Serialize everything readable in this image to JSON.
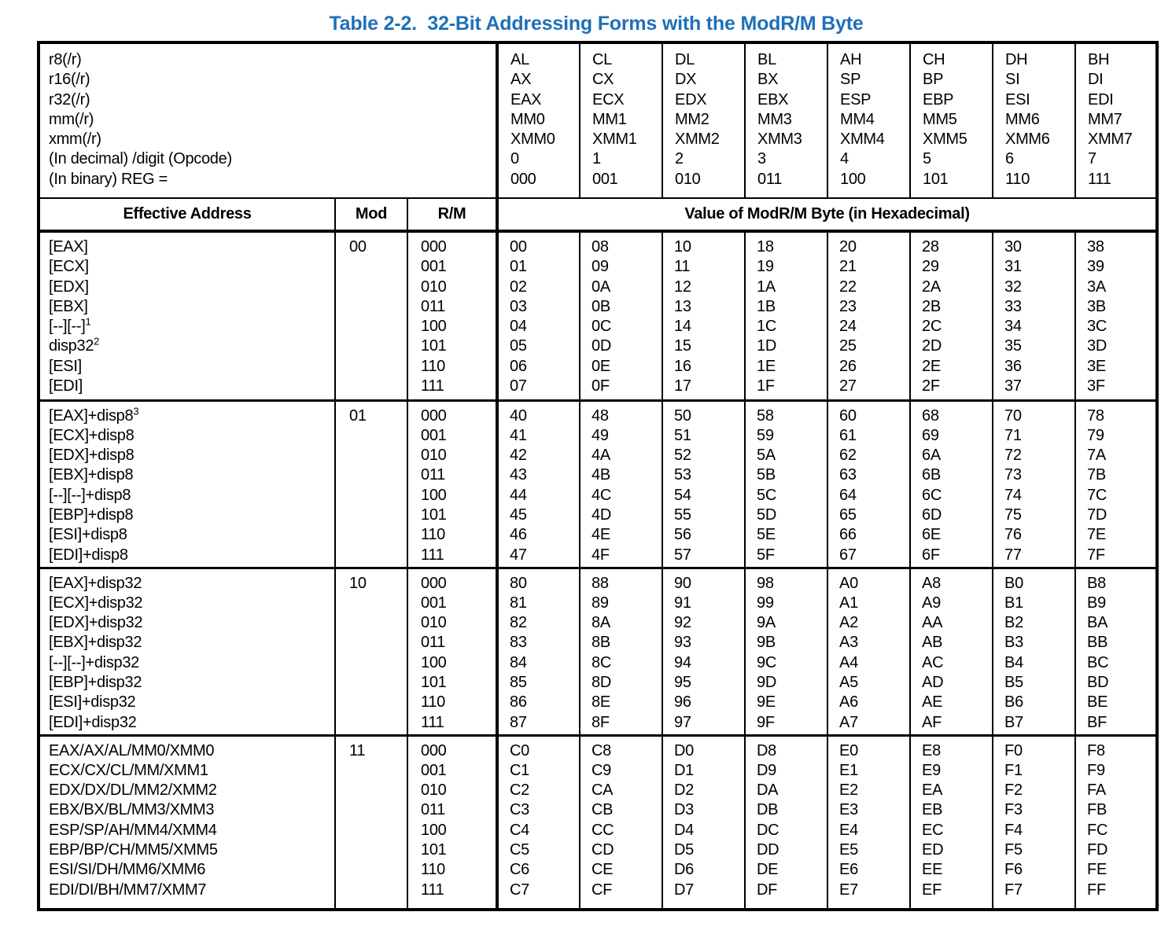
{
  "title": "Table 2-2.  32-Bit Addressing Forms with the ModR/M Byte",
  "colors": {
    "title_blue": "#1e70b8",
    "line_black": "#000000"
  },
  "header": {
    "reg_key_lines": [
      "r8(/r)",
      "r16(/r)",
      "r32(/r)",
      "mm(/r)",
      "xmm(/r)",
      "(In decimal) /digit (Opcode)",
      "(In binary) REG ="
    ],
    "reg_columns": [
      [
        "AL",
        "AX",
        "EAX",
        "MM0",
        "XMM0",
        "0",
        "000"
      ],
      [
        "CL",
        "CX",
        "ECX",
        "MM1",
        "XMM1",
        "1",
        "001"
      ],
      [
        "DL",
        "DX",
        "EDX",
        "MM2",
        "XMM2",
        "2",
        "010"
      ],
      [
        "BL",
        "BX",
        "EBX",
        "MM3",
        "XMM3",
        "3",
        "011"
      ],
      [
        "AH",
        "SP",
        "ESP",
        "MM4",
        "XMM4",
        "4",
        "100"
      ],
      [
        "CH",
        "BP",
        "EBP",
        "MM5",
        "XMM5",
        "5",
        "101"
      ],
      [
        "DH",
        "SI",
        "ESI",
        "MM6",
        "XMM6",
        "6",
        "110"
      ],
      [
        "BH",
        "DI",
        "EDI",
        "MM7",
        "XMM7",
        "7",
        "111"
      ]
    ],
    "effective_address_label": "Effective Address",
    "mod_label": "Mod",
    "rm_label": "R/M",
    "value_label": "Value of ModR/M Byte (in Hexadecimal)"
  },
  "rm_values": [
    "000",
    "001",
    "010",
    "011",
    "100",
    "101",
    "110",
    "111"
  ],
  "sections": [
    {
      "mod": "00",
      "effective_addresses": [
        {
          "t": "[EAX]",
          "s": ""
        },
        {
          "t": "[ECX]",
          "s": ""
        },
        {
          "t": "[EDX]",
          "s": ""
        },
        {
          "t": "[EBX]",
          "s": ""
        },
        {
          "t": "[--][--]",
          "s": "1"
        },
        {
          "t": "disp32",
          "s": "2"
        },
        {
          "t": "[ESI]",
          "s": ""
        },
        {
          "t": "[EDI]",
          "s": ""
        }
      ],
      "hex_columns": [
        [
          "00",
          "01",
          "02",
          "03",
          "04",
          "05",
          "06",
          "07"
        ],
        [
          "08",
          "09",
          "0A",
          "0B",
          "0C",
          "0D",
          "0E",
          "0F"
        ],
        [
          "10",
          "11",
          "12",
          "13",
          "14",
          "15",
          "16",
          "17"
        ],
        [
          "18",
          "19",
          "1A",
          "1B",
          "1C",
          "1D",
          "1E",
          "1F"
        ],
        [
          "20",
          "21",
          "22",
          "23",
          "24",
          "25",
          "26",
          "27"
        ],
        [
          "28",
          "29",
          "2A",
          "2B",
          "2C",
          "2D",
          "2E",
          "2F"
        ],
        [
          "30",
          "31",
          "32",
          "33",
          "34",
          "35",
          "36",
          "37"
        ],
        [
          "38",
          "39",
          "3A",
          "3B",
          "3C",
          "3D",
          "3E",
          "3F"
        ]
      ]
    },
    {
      "mod": "01",
      "effective_addresses": [
        {
          "t": "[EAX]+disp8",
          "s": "3"
        },
        {
          "t": "[ECX]+disp8",
          "s": ""
        },
        {
          "t": "[EDX]+disp8",
          "s": ""
        },
        {
          "t": "[EBX]+disp8",
          "s": ""
        },
        {
          "t": "[--][--]+disp8",
          "s": ""
        },
        {
          "t": "[EBP]+disp8",
          "s": ""
        },
        {
          "t": "[ESI]+disp8",
          "s": ""
        },
        {
          "t": "[EDI]+disp8",
          "s": ""
        }
      ],
      "hex_columns": [
        [
          "40",
          "41",
          "42",
          "43",
          "44",
          "45",
          "46",
          "47"
        ],
        [
          "48",
          "49",
          "4A",
          "4B",
          "4C",
          "4D",
          "4E",
          "4F"
        ],
        [
          "50",
          "51",
          "52",
          "53",
          "54",
          "55",
          "56",
          "57"
        ],
        [
          "58",
          "59",
          "5A",
          "5B",
          "5C",
          "5D",
          "5E",
          "5F"
        ],
        [
          "60",
          "61",
          "62",
          "63",
          "64",
          "65",
          "66",
          "67"
        ],
        [
          "68",
          "69",
          "6A",
          "6B",
          "6C",
          "6D",
          "6E",
          "6F"
        ],
        [
          "70",
          "71",
          "72",
          "73",
          "74",
          "75",
          "76",
          "77"
        ],
        [
          "78",
          "79",
          "7A",
          "7B",
          "7C",
          "7D",
          "7E",
          "7F"
        ]
      ]
    },
    {
      "mod": "10",
      "effective_addresses": [
        {
          "t": "[EAX]+disp32",
          "s": ""
        },
        {
          "t": "[ECX]+disp32",
          "s": ""
        },
        {
          "t": "[EDX]+disp32",
          "s": ""
        },
        {
          "t": "[EBX]+disp32",
          "s": ""
        },
        {
          "t": "[--][--]+disp32",
          "s": ""
        },
        {
          "t": "[EBP]+disp32",
          "s": ""
        },
        {
          "t": "[ESI]+disp32",
          "s": ""
        },
        {
          "t": "[EDI]+disp32",
          "s": ""
        }
      ],
      "hex_columns": [
        [
          "80",
          "81",
          "82",
          "83",
          "84",
          "85",
          "86",
          "87"
        ],
        [
          "88",
          "89",
          "8A",
          "8B",
          "8C",
          "8D",
          "8E",
          "8F"
        ],
        [
          "90",
          "91",
          "92",
          "93",
          "94",
          "95",
          "96",
          "97"
        ],
        [
          "98",
          "99",
          "9A",
          "9B",
          "9C",
          "9D",
          "9E",
          "9F"
        ],
        [
          "A0",
          "A1",
          "A2",
          "A3",
          "A4",
          "A5",
          "A6",
          "A7"
        ],
        [
          "A8",
          "A9",
          "AA",
          "AB",
          "AC",
          "AD",
          "AE",
          "AF"
        ],
        [
          "B0",
          "B1",
          "B2",
          "B3",
          "B4",
          "B5",
          "B6",
          "B7"
        ],
        [
          "B8",
          "B9",
          "BA",
          "BB",
          "BC",
          "BD",
          "BE",
          "BF"
        ]
      ]
    },
    {
      "mod": "11",
      "effective_addresses": [
        {
          "t": "EAX/AX/AL/MM0/XMM0",
          "s": ""
        },
        {
          "t": "ECX/CX/CL/MM/XMM1",
          "s": ""
        },
        {
          "t": "EDX/DX/DL/MM2/XMM2",
          "s": ""
        },
        {
          "t": "EBX/BX/BL/MM3/XMM3",
          "s": ""
        },
        {
          "t": "ESP/SP/AH/MM4/XMM4",
          "s": ""
        },
        {
          "t": "EBP/BP/CH/MM5/XMM5",
          "s": ""
        },
        {
          "t": "ESI/SI/DH/MM6/XMM6",
          "s": ""
        },
        {
          "t": "EDI/DI/BH/MM7/XMM7",
          "s": ""
        }
      ],
      "hex_columns": [
        [
          "C0",
          "C1",
          "C2",
          "C3",
          "C4",
          "C5",
          "C6",
          "C7"
        ],
        [
          "C8",
          "C9",
          "CA",
          "CB",
          "CC",
          "CD",
          "CE",
          "CF"
        ],
        [
          "D0",
          "D1",
          "D2",
          "D3",
          "D4",
          "D5",
          "D6",
          "D7"
        ],
        [
          "D8",
          "D9",
          "DA",
          "DB",
          "DC",
          "DD",
          "DE",
          "DF"
        ],
        [
          "E0",
          "E1",
          "E2",
          "E3",
          "E4",
          "E5",
          "E6",
          "E7"
        ],
        [
          "E8",
          "E9",
          "EA",
          "EB",
          "EC",
          "ED",
          "EE",
          "EF"
        ],
        [
          "F0",
          "F1",
          "F2",
          "F3",
          "F4",
          "F5",
          "F6",
          "F7"
        ],
        [
          "F8",
          "F9",
          "FA",
          "FB",
          "FC",
          "FD",
          "FE",
          "FF"
        ]
      ]
    }
  ]
}
